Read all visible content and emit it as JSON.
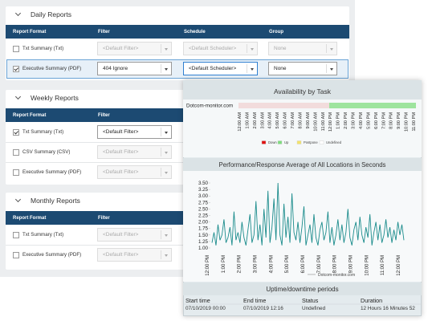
{
  "sections": [
    {
      "title": "Daily Reports",
      "columns": [
        "Report Format",
        "Filter",
        "Schedule",
        "Group"
      ],
      "rows": [
        {
          "checked": false,
          "selected": false,
          "format": "Txt Summary (Txt)",
          "cells": [
            {
              "text": "<Default Filter>",
              "enabled": false
            },
            {
              "text": "<Default Scheduler>",
              "enabled": false
            },
            {
              "text": "None",
              "enabled": false
            }
          ]
        },
        {
          "checked": true,
          "selected": true,
          "format": "Executive Summary (PDF)",
          "cells": [
            {
              "text": "404 Ignore",
              "enabled": true
            },
            {
              "text": "<Default Scheduler>",
              "enabled": true,
              "focused": true
            },
            {
              "text": "None",
              "enabled": true
            }
          ]
        }
      ]
    },
    {
      "title": "Weekly Reports",
      "columns": [
        "Report Format",
        "Filter"
      ],
      "rows": [
        {
          "checked": true,
          "selected": false,
          "format": "Txt Summary (Txt)",
          "cells": [
            {
              "text": "<Default Filter>",
              "enabled": true
            }
          ]
        },
        {
          "checked": false,
          "selected": false,
          "format": "CSV Summary (CSV)",
          "cells": [
            {
              "text": "<Default Filter>",
              "enabled": false
            }
          ]
        },
        {
          "checked": false,
          "selected": false,
          "format": "Executive Summary (PDF)",
          "cells": [
            {
              "text": "<Default Filter>",
              "enabled": false
            }
          ]
        }
      ]
    },
    {
      "title": "Monthly Reports",
      "columns": [
        "Report Format",
        "Filter"
      ],
      "rows": [
        {
          "checked": false,
          "selected": false,
          "format": "Txt Summary (Txt)",
          "cells": [
            {
              "text": "<Default Filter>",
              "enabled": false
            }
          ]
        },
        {
          "checked": false,
          "selected": false,
          "format": "Executive Summary (PDF)",
          "cells": [
            {
              "text": "<Default Filter>",
              "enabled": false
            }
          ]
        }
      ]
    }
  ],
  "availability": {
    "title": "Availability by Task",
    "task": "Dotcom-monitor.com",
    "time_labels": [
      "12:00 AM",
      "1:00 AM",
      "2:00 AM",
      "3:00 AM",
      "4:00 AM",
      "5:00 AM",
      "6:00 AM",
      "7:00 AM",
      "8:00 AM",
      "9:00 AM",
      "10:00 AM",
      "11:00 AM",
      "12:00 PM",
      "1:00 PM",
      "2:00 PM",
      "3:00 PM",
      "4:00 PM",
      "5:00 PM",
      "6:00 PM",
      "7:00 PM",
      "8:00 PM",
      "9:00 PM",
      "10:00 PM",
      "11:00 PM"
    ],
    "legend": [
      {
        "name": "Down",
        "color": "#e01010"
      },
      {
        "name": "Up",
        "color": "#7ddc7d"
      },
      {
        "name": "Postpone",
        "color": "#f3e36a"
      },
      {
        "name": "Undefined",
        "color": "#ffffff"
      }
    ]
  },
  "chart_data": {
    "type": "line",
    "title": "Performance/Response Average of All Locations in Seconds",
    "xtick_labels": [
      "12:00 PM",
      "1:00 PM",
      "2:00 PM",
      "3:00 PM",
      "4:00 PM",
      "5:00 PM",
      "6:00 PM",
      "7:00 PM",
      "8:00 PM",
      "9:00 PM",
      "10:00 PM",
      "11:00 PM",
      "12:00 PM"
    ],
    "series": [
      {
        "name": "Dotcom-monitor.com",
        "color": "#1b8c8c",
        "values": [
          1.2,
          1.6,
          1.1,
          1.9,
          1.3,
          1.5,
          2.1,
          1.2,
          1.4,
          1.8,
          1.1,
          2.4,
          1.3,
          1.6,
          1.2,
          2.0,
          1.4,
          1.1,
          1.7,
          2.3,
          1.2,
          1.5,
          2.8,
          1.3,
          1.9,
          1.1,
          2.5,
          1.4,
          3.2,
          1.2,
          1.8,
          2.9,
          1.3,
          3.5,
          1.5,
          1.1,
          2.7,
          1.4,
          2.2,
          1.2,
          3.1,
          1.6,
          1.3,
          2.0,
          1.2,
          1.8,
          2.6,
          1.1,
          1.5,
          1.9,
          1.2,
          2.3,
          1.4,
          1.1,
          1.7,
          2.0,
          1.3,
          1.6,
          2.4,
          1.2,
          1.8,
          1.1,
          1.5,
          2.1,
          1.3,
          1.9,
          1.2,
          1.6,
          2.5,
          1.4,
          1.1,
          1.7,
          2.0,
          1.3,
          2.2,
          1.5,
          1.2,
          1.8,
          1.4,
          2.3,
          1.1,
          1.6,
          2.0,
          1.3,
          1.9,
          1.2,
          1.5,
          2.1,
          1.4,
          1.8,
          1.2,
          1.7,
          1.3,
          2.0,
          1.5,
          1.9,
          1.3
        ]
      }
    ],
    "ylim": [
      1,
      3.5
    ],
    "yticks": [
      {
        "value": 3.5,
        "label": "3.50"
      },
      {
        "value": 3.25,
        "label": "3.25"
      },
      {
        "value": 3,
        "label": "3.00"
      },
      {
        "value": 2.75,
        "label": "2.75"
      },
      {
        "value": 2.5,
        "label": "2.50"
      },
      {
        "value": 2.25,
        "label": "2.25"
      },
      {
        "value": 2,
        "label": "2.00"
      },
      {
        "value": 1.75,
        "label": "1.75"
      },
      {
        "value": 1.5,
        "label": "1.50"
      },
      {
        "value": 1.25,
        "label": "1.25"
      },
      {
        "value": 1,
        "label": "1.00"
      }
    ]
  },
  "uptime": {
    "title": "Uptime/downtime periods",
    "columns": [
      "Start time",
      "End time",
      "Status",
      "Duration"
    ],
    "rows": [
      [
        "07/10/2019 00:00",
        "07/10/2019 12:16",
        "Undefined",
        "12 Hours 16 Minutes 52"
      ]
    ]
  }
}
